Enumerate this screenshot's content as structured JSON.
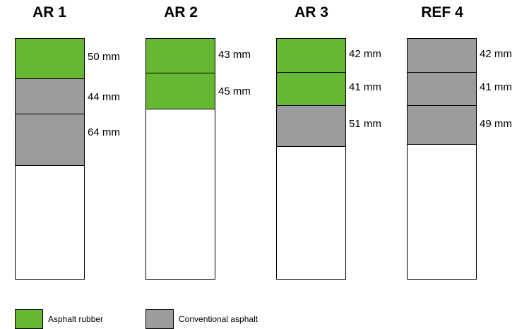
{
  "colors": {
    "asphalt_rubber": "#66b832",
    "conventional_asphalt": "#9c9c9c",
    "base": "#ffffff"
  },
  "sections": [
    {
      "title": "AR 1",
      "layers": [
        {
          "thickness_mm": 50,
          "label": "50 mm",
          "material": "asphalt_rubber"
        },
        {
          "thickness_mm": 44,
          "label": "44 mm",
          "material": "conventional_asphalt"
        },
        {
          "thickness_mm": 64,
          "label": "64 mm",
          "material": "conventional_asphalt"
        }
      ]
    },
    {
      "title": "AR 2",
      "layers": [
        {
          "thickness_mm": 43,
          "label": "43 mm",
          "material": "asphalt_rubber"
        },
        {
          "thickness_mm": 45,
          "label": "45 mm",
          "material": "asphalt_rubber"
        }
      ]
    },
    {
      "title": "AR 3",
      "layers": [
        {
          "thickness_mm": 42,
          "label": "42 mm",
          "material": "asphalt_rubber"
        },
        {
          "thickness_mm": 41,
          "label": "41 mm",
          "material": "asphalt_rubber"
        },
        {
          "thickness_mm": 51,
          "label": "51 mm",
          "material": "conventional_asphalt"
        }
      ]
    },
    {
      "title": "REF 4",
      "layers": [
        {
          "thickness_mm": 42,
          "label": "42 mm",
          "material": "conventional_asphalt"
        },
        {
          "thickness_mm": 41,
          "label": "41 mm",
          "material": "conventional_asphalt"
        },
        {
          "thickness_mm": 49,
          "label": "49 mm",
          "material": "conventional_asphalt"
        }
      ]
    }
  ],
  "legend": [
    {
      "material": "asphalt_rubber",
      "label": "Asphalt rubber"
    },
    {
      "material": "conventional_asphalt",
      "label": "Conventional asphalt"
    }
  ]
}
